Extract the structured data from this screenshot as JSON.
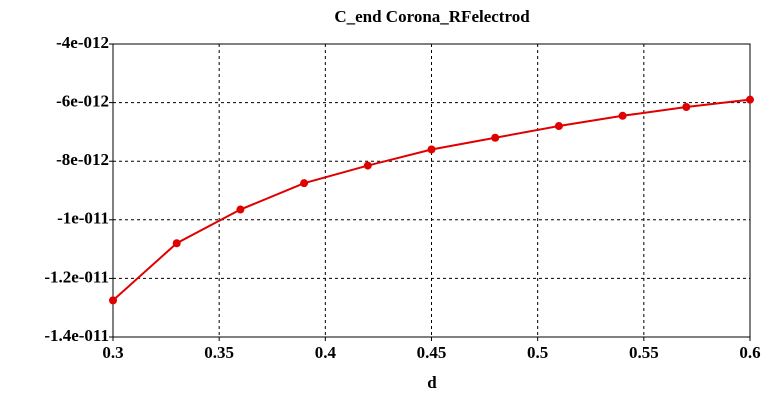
{
  "chart_data": {
    "type": "line",
    "title": "C_end Corona_RFelectrod",
    "x_label": "d",
    "x": [
      0.3,
      0.33,
      0.36,
      0.39,
      0.42,
      0.45,
      0.48,
      0.51,
      0.54,
      0.57,
      0.6
    ],
    "series": [
      {
        "color": "#e00000",
        "values": [
          -1.275e-11,
          -1.08e-11,
          -9.65e-12,
          -8.75e-12,
          -8.15e-12,
          -7.6e-12,
          -7.2e-12,
          -6.8e-12,
          -6.45e-12,
          -6.15e-12,
          -5.9e-12
        ]
      }
    ],
    "xlim": [
      0.3,
      0.6
    ],
    "xticks": [
      0.3,
      0.35,
      0.4,
      0.45,
      0.5,
      0.55,
      0.6
    ],
    "ylim": [
      -1.4e-11,
      -4e-12
    ],
    "yticks": [
      {
        "value": -1.4e-11,
        "label": "-1.4e-011"
      },
      {
        "value": -1.2e-11,
        "label": "-1.2e-011"
      },
      {
        "value": -1e-11,
        "label": "-1e-011"
      },
      {
        "value": -8e-12,
        "label": "-8e-012"
      },
      {
        "value": -6e-12,
        "label": "-6e-012"
      },
      {
        "value": -4e-12,
        "label": "-4e-012"
      }
    ],
    "grid": true
  }
}
